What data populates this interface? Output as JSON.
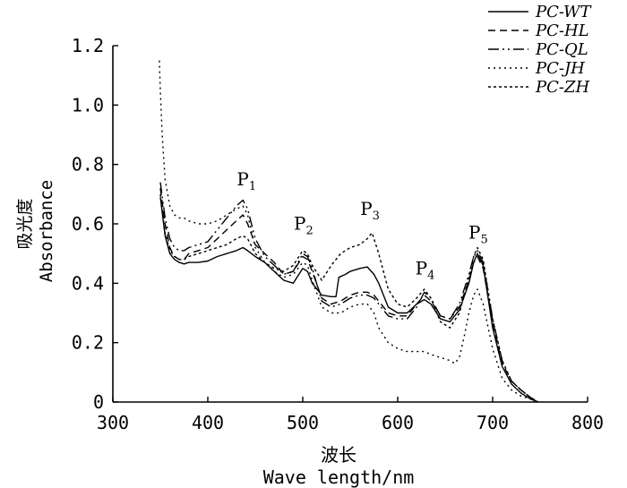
{
  "chart_data": {
    "type": "line",
    "ylabel_zh": "吸光度",
    "ylabel_en": "Absorbance",
    "xlabel_zh": "波长",
    "xlabel_en": "Wave length/nm",
    "xlim": [
      300,
      800
    ],
    "ylim": [
      0,
      1.2
    ],
    "x_ticks": [
      "300",
      "400",
      "500",
      "600",
      "700",
      "800"
    ],
    "y_ticks": [
      "0",
      "0.2",
      "0.4",
      "0.6",
      "0.8",
      "1.0",
      "1.2"
    ],
    "legend_position": "top-right",
    "peaks": [
      {
        "label": "P",
        "sub": "1",
        "x": 440,
        "y": 0.7
      },
      {
        "label": "P",
        "sub": "2",
        "x": 500,
        "y": 0.55
      },
      {
        "label": "P",
        "sub": "3",
        "x": 570,
        "y": 0.6
      },
      {
        "label": "P",
        "sub": "4",
        "x": 628,
        "y": 0.4
      },
      {
        "label": "P",
        "sub": "5",
        "x": 684,
        "y": 0.52
      }
    ],
    "series": [
      {
        "name": "PC-WT",
        "dash": "solid",
        "x": [
          350,
          355,
          360,
          365,
          370,
          375,
          380,
          390,
          400,
          410,
          420,
          430,
          437,
          442,
          450,
          460,
          470,
          480,
          490,
          500,
          505,
          510,
          520,
          530,
          535,
          538,
          545,
          550,
          560,
          568,
          575,
          580,
          590,
          600,
          610,
          620,
          628,
          635,
          645,
          655,
          665,
          675,
          680,
          684,
          690,
          700,
          710,
          720,
          730,
          740,
          748
        ],
        "y": [
          0.69,
          0.56,
          0.5,
          0.48,
          0.47,
          0.465,
          0.47,
          0.47,
          0.475,
          0.49,
          0.5,
          0.51,
          0.52,
          0.51,
          0.49,
          0.47,
          0.44,
          0.41,
          0.4,
          0.45,
          0.44,
          0.4,
          0.36,
          0.355,
          0.355,
          0.42,
          0.43,
          0.44,
          0.45,
          0.455,
          0.43,
          0.4,
          0.32,
          0.3,
          0.3,
          0.33,
          0.345,
          0.33,
          0.28,
          0.27,
          0.31,
          0.4,
          0.47,
          0.5,
          0.46,
          0.25,
          0.12,
          0.06,
          0.03,
          0.01,
          0
        ]
      },
      {
        "name": "PC-HL",
        "dash": "8 5",
        "x": [
          350,
          355,
          360,
          365,
          370,
          375,
          380,
          390,
          400,
          410,
          420,
          430,
          437,
          442,
          450,
          460,
          470,
          480,
          490,
          500,
          505,
          510,
          520,
          530,
          540,
          550,
          560,
          568,
          575,
          580,
          590,
          600,
          610,
          620,
          628,
          635,
          645,
          655,
          665,
          675,
          680,
          684,
          690,
          700,
          710,
          720,
          730,
          740,
          748
        ],
        "y": [
          0.72,
          0.6,
          0.52,
          0.49,
          0.48,
          0.48,
          0.5,
          0.51,
          0.52,
          0.55,
          0.58,
          0.61,
          0.63,
          0.6,
          0.53,
          0.5,
          0.47,
          0.43,
          0.44,
          0.49,
          0.48,
          0.44,
          0.35,
          0.33,
          0.34,
          0.36,
          0.37,
          0.37,
          0.36,
          0.34,
          0.3,
          0.29,
          0.29,
          0.33,
          0.36,
          0.34,
          0.29,
          0.28,
          0.32,
          0.41,
          0.47,
          0.49,
          0.45,
          0.27,
          0.13,
          0.07,
          0.04,
          0.015,
          0
        ]
      },
      {
        "name": "PC-QL",
        "dash": "12 4 2 4 2 4",
        "x": [
          350,
          355,
          360,
          365,
          370,
          375,
          380,
          390,
          400,
          410,
          420,
          430,
          437,
          442,
          450,
          460,
          470,
          480,
          490,
          500,
          505,
          510,
          520,
          530,
          540,
          550,
          560,
          568,
          575,
          580,
          590,
          600,
          610,
          620,
          628,
          635,
          645,
          655,
          665,
          675,
          680,
          684,
          690,
          700,
          710,
          720,
          730,
          740,
          748
        ],
        "y": [
          0.74,
          0.62,
          0.55,
          0.52,
          0.51,
          0.51,
          0.52,
          0.53,
          0.54,
          0.58,
          0.62,
          0.66,
          0.68,
          0.65,
          0.55,
          0.49,
          0.46,
          0.43,
          0.44,
          0.5,
          0.49,
          0.45,
          0.34,
          0.32,
          0.33,
          0.35,
          0.36,
          0.36,
          0.35,
          0.33,
          0.29,
          0.28,
          0.28,
          0.32,
          0.37,
          0.35,
          0.29,
          0.28,
          0.33,
          0.43,
          0.49,
          0.51,
          0.47,
          0.28,
          0.14,
          0.07,
          0.04,
          0.015,
          0
        ]
      },
      {
        "name": "PC-JH",
        "dash": "2 4",
        "x": [
          349,
          350,
          352,
          355,
          360,
          365,
          370,
          375,
          380,
          390,
          400,
          410,
          420,
          430,
          437,
          442,
          450,
          460,
          470,
          480,
          490,
          500,
          505,
          510,
          520,
          530,
          540,
          550,
          560,
          568,
          575,
          580,
          590,
          600,
          610,
          620,
          628,
          635,
          645,
          655,
          660,
          665,
          670,
          675,
          680,
          684,
          690,
          700,
          710,
          720,
          730,
          740,
          748
        ],
        "y": [
          1.15,
          1.05,
          0.9,
          0.75,
          0.66,
          0.63,
          0.62,
          0.62,
          0.61,
          0.6,
          0.6,
          0.61,
          0.63,
          0.65,
          0.66,
          0.63,
          0.52,
          0.47,
          0.44,
          0.42,
          0.43,
          0.47,
          0.46,
          0.41,
          0.32,
          0.3,
          0.3,
          0.32,
          0.33,
          0.33,
          0.3,
          0.25,
          0.2,
          0.18,
          0.17,
          0.17,
          0.17,
          0.16,
          0.15,
          0.14,
          0.13,
          0.15,
          0.22,
          0.3,
          0.36,
          0.38,
          0.33,
          0.18,
          0.08,
          0.04,
          0.02,
          0.01,
          0
        ]
      },
      {
        "name": "PC-ZH",
        "dash": "3 3",
        "x": [
          350,
          355,
          360,
          365,
          370,
          375,
          380,
          390,
          400,
          410,
          420,
          430,
          437,
          442,
          450,
          460,
          470,
          480,
          490,
          500,
          505,
          510,
          520,
          530,
          540,
          550,
          560,
          568,
          573,
          580,
          590,
          600,
          610,
          620,
          628,
          635,
          645,
          655,
          665,
          675,
          680,
          684,
          690,
          700,
          710,
          720,
          730,
          740,
          748
        ],
        "y": [
          0.7,
          0.57,
          0.51,
          0.49,
          0.48,
          0.48,
          0.49,
          0.5,
          0.51,
          0.52,
          0.53,
          0.55,
          0.56,
          0.55,
          0.5,
          0.47,
          0.45,
          0.44,
          0.46,
          0.51,
          0.5,
          0.46,
          0.41,
          0.46,
          0.5,
          0.52,
          0.53,
          0.55,
          0.57,
          0.5,
          0.38,
          0.33,
          0.32,
          0.35,
          0.38,
          0.35,
          0.27,
          0.25,
          0.3,
          0.42,
          0.49,
          0.52,
          0.48,
          0.28,
          0.14,
          0.07,
          0.04,
          0.015,
          0
        ]
      }
    ]
  }
}
